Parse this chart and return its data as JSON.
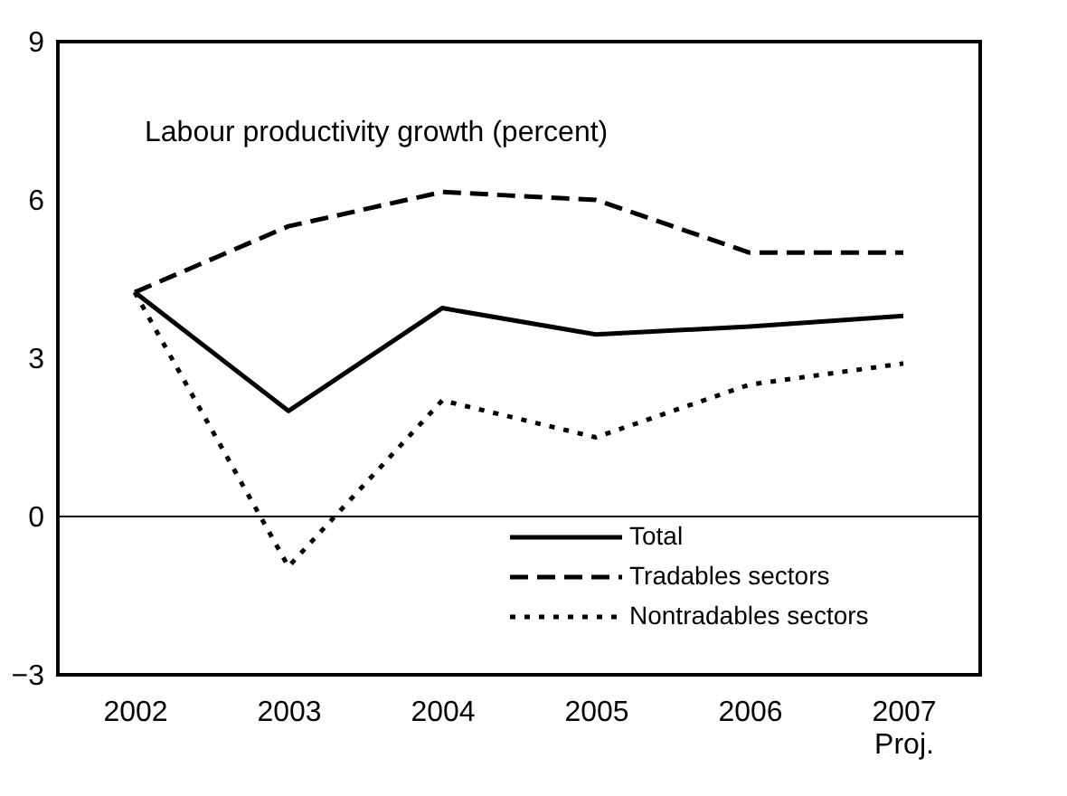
{
  "chart_data": {
    "type": "line",
    "title": "Labour productivity growth (percent)",
    "categories": [
      "2002",
      "2003",
      "2004",
      "2005",
      "2006",
      "2007\nProj."
    ],
    "series": [
      {
        "name": "Total",
        "color": "#000000",
        "line_style": "solid",
        "values": [
          4.25,
          2.0,
          3.95,
          3.45,
          3.6,
          3.8
        ]
      },
      {
        "name": "Tradables sectors",
        "color": "#000000",
        "line_style": "dashed",
        "values": [
          4.25,
          5.5,
          6.15,
          6.0,
          5.0,
          5.0
        ]
      },
      {
        "name": "Nontradables sectors",
        "color": "#000000",
        "line_style": "dotted",
        "values": [
          4.25,
          -0.95,
          2.2,
          1.5,
          2.5,
          2.9
        ]
      }
    ],
    "ylim": [
      -3,
      9
    ],
    "yticks": [
      -3,
      0,
      3,
      6,
      9
    ],
    "ref_lines": [
      {
        "axis": "y",
        "value": 0,
        "color": "#000000"
      }
    ],
    "grid": false,
    "legend": "bottom right",
    "marker": "none"
  }
}
